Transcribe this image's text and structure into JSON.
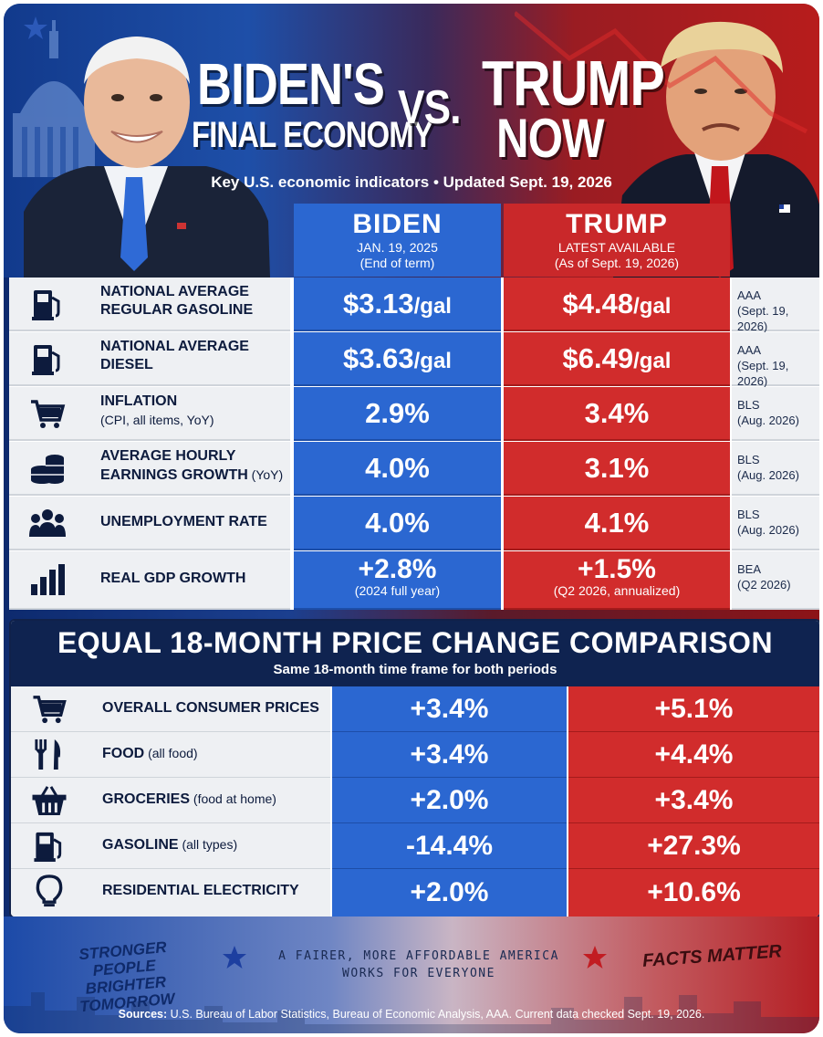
{
  "header": {
    "left_title_1": "BIDEN'S",
    "left_title_2": "FINAL ECONOMY",
    "vs": "VS.",
    "right_title_1": "TRUMP",
    "right_title_2": "NOW",
    "subtitle": "Key U.S. economic indicators • Updated Sept. 19, 2026"
  },
  "columns": {
    "biden": {
      "name": "BIDEN",
      "line1": "JAN. 19, 2025",
      "line2": "(End of term)"
    },
    "trump": {
      "name": "TRUMP",
      "line1": "LATEST AVAILABLE",
      "line2": "(As of Sept. 19, 2026)"
    }
  },
  "indicators": [
    {
      "icon": "gas-pump-icon",
      "label": "NATIONAL AVERAGE",
      "label2": "REGULAR GASOLINE",
      "biden": "$3.13",
      "biden_unit": "/gal",
      "trump": "$4.48",
      "trump_unit": "/gal",
      "src1": "AAA",
      "src2": "(Sept. 19, 2026)"
    },
    {
      "icon": "gas-pump-icon",
      "label": "NATIONAL AVERAGE",
      "label2": "DIESEL",
      "biden": "$3.63",
      "biden_unit": "/gal",
      "trump": "$6.49",
      "trump_unit": "/gal",
      "src1": "AAA",
      "src2": "(Sept. 19, 2026)"
    },
    {
      "icon": "shopping-cart-icon",
      "label": "INFLATION",
      "label2": "(CPI, all items, YoY)",
      "biden": "2.9%",
      "trump": "3.4%",
      "src1": "BLS",
      "src2": "(Aug. 2026)"
    },
    {
      "icon": "coins-icon",
      "label": "AVERAGE HOURLY",
      "label2": "EARNINGS GROWTH",
      "label2_small": " (YoY)",
      "biden": "4.0%",
      "trump": "3.1%",
      "src1": "BLS",
      "src2": "(Aug. 2026)"
    },
    {
      "icon": "people-icon",
      "label": "UNEMPLOYMENT RATE",
      "biden": "4.0%",
      "trump": "4.1%",
      "src1": "BLS",
      "src2": "(Aug. 2026)"
    },
    {
      "icon": "bar-chart-icon",
      "label": "REAL GDP GROWTH",
      "biden": "+2.8%",
      "biden_note": "(2024 full year)",
      "trump": "+1.5%",
      "trump_note": "(Q2 2026, annualized)",
      "src1": "BEA",
      "src2": "(Q2 2026)"
    }
  ],
  "comparison": {
    "title": "EQUAL 18-MONTH PRICE CHANGE COMPARISON",
    "subtitle": "Same 18-month time frame for both periods",
    "rows": [
      {
        "icon": "shopping-cart-icon",
        "label": "OVERALL CONSUMER PRICES",
        "small": "",
        "biden": "+3.4%",
        "trump": "+5.1%"
      },
      {
        "icon": "fork-knife-icon",
        "label": "FOOD",
        "small": " (all food)",
        "biden": "+3.4%",
        "trump": "+4.4%"
      },
      {
        "icon": "basket-icon",
        "label": "GROCERIES",
        "small": " (food at home)",
        "biden": "+2.0%",
        "trump": "+3.4%"
      },
      {
        "icon": "gas-pump-icon",
        "label": "GASOLINE",
        "small": " (all types)",
        "biden": "-14.4%",
        "trump": "+27.3%"
      },
      {
        "icon": "lightbulb-icon",
        "label": "RESIDENTIAL ELECTRICITY",
        "small": "",
        "biden": "+2.0%",
        "trump": "+10.6%"
      }
    ]
  },
  "footer": {
    "slogan_left_1": "STRONGER PEOPLE",
    "slogan_left_2": "BRIGHTER TOMORROW",
    "slogan_mid_1": "A FAIRER, MORE AFFORDABLE AMERICA",
    "slogan_mid_2": "WORKS FOR EVERYONE",
    "slogan_right": "FACTS MATTER",
    "sources_label": "Sources:",
    "sources_text": " U.S. Bureau of Labor Statistics, Bureau of Economic Analysis, AAA.  Current data checked Sept. 19, 2026."
  },
  "colors": {
    "biden_blue": "#2b67d1",
    "trump_red": "#d12c2c",
    "navy": "#0f2350"
  }
}
